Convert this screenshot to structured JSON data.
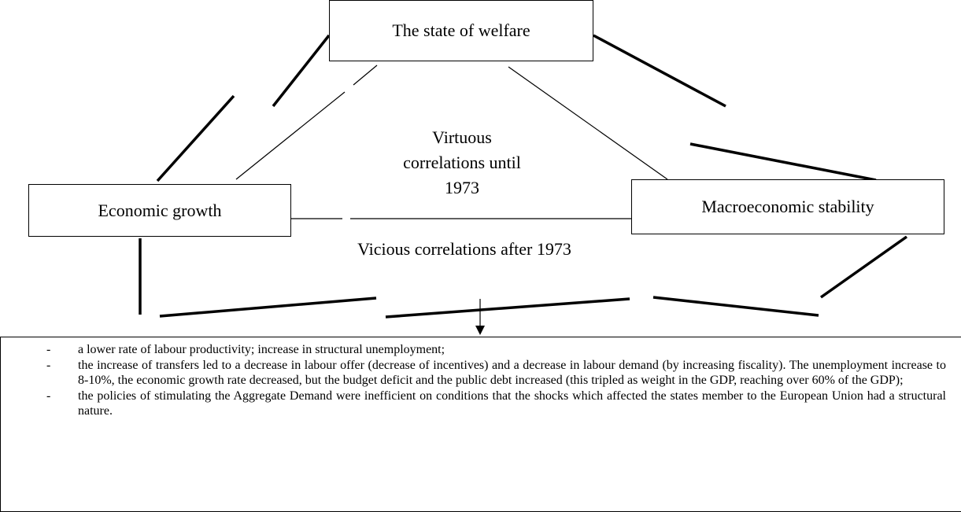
{
  "nodes": [
    {
      "label": "The state of welfare"
    },
    {
      "label": "Economic growth"
    },
    {
      "label": "Macroeconomic stability"
    }
  ],
  "center_label": [
    "Virtuous",
    "correlations until",
    "1973"
  ],
  "bottom_label": "Vicious correlations after 1973",
  "list": {
    "bullet": "-",
    "items": [
      "a lower rate of labour productivity; increase in structural unemployment;",
      "the increase of transfers led to a decrease in labour offer (decrease of incentives) and a decrease in labour demand (by increasing fiscality). The unemployment increase to 8-10%, the economic growth rate decreased, but the budget deficit and the public debt increased (this tripled as weight in the GDP, reaching over 60% of the GDP);",
      "the policies of stimulating the Aggregate Demand were inefficient on conditions that the shocks which affected the states member to the European Union had a structural nature."
    ]
  }
}
